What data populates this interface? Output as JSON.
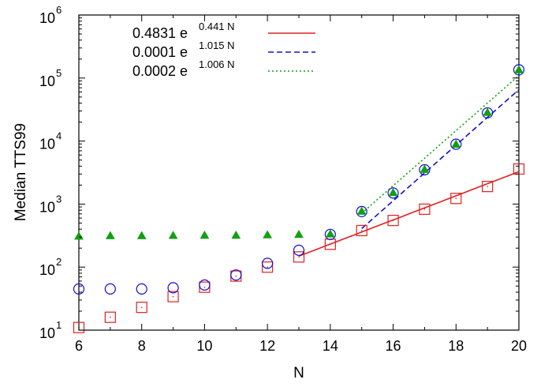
{
  "chart_data": {
    "type": "scatter",
    "xlabel": "N",
    "ylabel": "Median TTS99",
    "xlim": [
      6,
      20
    ],
    "ylim": [
      10,
      1000000
    ],
    "y_scale": "log",
    "grid": false,
    "legend_position": "top-left",
    "x_ticks": [
      "6",
      "8",
      "10",
      "12",
      "14",
      "16",
      "18",
      "20"
    ],
    "y_ticks": [
      {
        "value": 10,
        "base": "10",
        "exp": "1"
      },
      {
        "value": 100,
        "base": "10",
        "exp": "2"
      },
      {
        "value": 1000,
        "base": "10",
        "exp": "3"
      },
      {
        "value": 10000,
        "base": "10",
        "exp": "4"
      },
      {
        "value": 100000,
        "base": "10",
        "exp": "5"
      },
      {
        "value": 1000000,
        "base": "10",
        "exp": "6"
      }
    ],
    "series": [
      {
        "marker": "square",
        "color": "#e02020",
        "x": [
          6,
          7,
          8,
          9,
          10,
          11,
          12,
          13,
          14,
          15,
          16,
          17,
          18,
          19,
          20
        ],
        "y": [
          11,
          16,
          23,
          34,
          48,
          72,
          100,
          145,
          230,
          380,
          550,
          830,
          1230,
          1900,
          3600
        ]
      },
      {
        "marker": "circle",
        "color": "#1010d0",
        "x": [
          6,
          7,
          8,
          9,
          10,
          11,
          12,
          13,
          14,
          15,
          16,
          17,
          18,
          19,
          20
        ],
        "y": [
          45,
          45,
          45,
          47,
          52,
          75,
          115,
          185,
          330,
          760,
          1500,
          3500,
          8900,
          28000,
          135000
        ]
      },
      {
        "marker": "triangle",
        "color": "#10a010",
        "x": [
          6,
          7,
          8,
          9,
          10,
          11,
          12,
          13,
          14,
          15,
          16,
          17,
          18,
          19,
          20
        ],
        "y": [
          310,
          315,
          315,
          318,
          320,
          320,
          325,
          330,
          335,
          770,
          1520,
          3550,
          8900,
          28500,
          135000
        ]
      }
    ],
    "fits": [
      {
        "prefix": "0.4831 e",
        "exponent": "0.441 N",
        "a": 0.4831,
        "b": 0.441,
        "x_range": [
          13,
          20
        ],
        "color": "#e02020",
        "dash": "solid"
      },
      {
        "prefix": "0.0001 e",
        "exponent": "1.015 N",
        "a": 0.0001,
        "b": 1.015,
        "x_range": [
          15,
          20
        ],
        "color": "#1010d0",
        "dash": "dashed"
      },
      {
        "prefix": "0.0002 e",
        "exponent": "1.006 N",
        "a": 0.0002,
        "b": 1.006,
        "x_range": [
          15,
          20
        ],
        "color": "#10a010",
        "dash": "dotted"
      }
    ]
  }
}
